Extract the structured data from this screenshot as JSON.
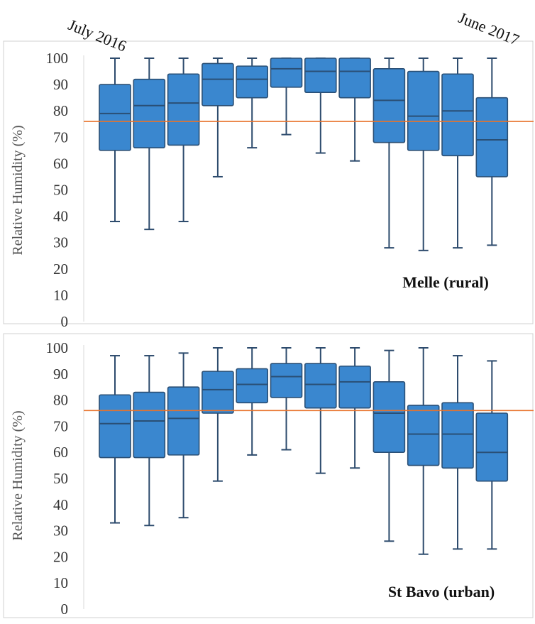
{
  "header": {
    "start_label": "July 2016",
    "end_label": "June 2017"
  },
  "colors": {
    "box_fill": "#3a87cf",
    "box_stroke": "#2a4f75",
    "whisker": "#2d4b6d",
    "reference_line": "#e8732c",
    "axis_text": "#333333",
    "panel_border": "#d0d0d0"
  },
  "chart_data": [
    {
      "type": "box",
      "panel_label": "Melle (rural)",
      "ylabel": "Relative Humidity (%)",
      "ylim": [
        0,
        100
      ],
      "yticks": [
        0,
        10,
        20,
        30,
        40,
        50,
        60,
        70,
        80,
        90,
        100
      ],
      "reference_line": 76,
      "boxes": [
        {
          "min": 38,
          "q1": 65,
          "median": 79,
          "q3": 90,
          "max": 100
        },
        {
          "min": 35,
          "q1": 66,
          "median": 82,
          "q3": 92,
          "max": 100
        },
        {
          "min": 38,
          "q1": 67,
          "median": 83,
          "q3": 94,
          "max": 100
        },
        {
          "min": 55,
          "q1": 82,
          "median": 92,
          "q3": 98,
          "max": 100
        },
        {
          "min": 66,
          "q1": 85,
          "median": 92,
          "q3": 97,
          "max": 100
        },
        {
          "min": 71,
          "q1": 89,
          "median": 96,
          "q3": 100,
          "max": 100
        },
        {
          "min": 64,
          "q1": 87,
          "median": 95,
          "q3": 100,
          "max": 100
        },
        {
          "min": 61,
          "q1": 85,
          "median": 95,
          "q3": 100,
          "max": 100
        },
        {
          "min": 28,
          "q1": 68,
          "median": 84,
          "q3": 96,
          "max": 100
        },
        {
          "min": 27,
          "q1": 65,
          "median": 78,
          "q3": 95,
          "max": 100
        },
        {
          "min": 28,
          "q1": 63,
          "median": 80,
          "q3": 94,
          "max": 100
        },
        {
          "min": 29,
          "q1": 55,
          "median": 69,
          "q3": 85,
          "max": 100
        }
      ]
    },
    {
      "type": "box",
      "panel_label": "St Bavo (urban)",
      "ylabel": "Relative Humidity (%)",
      "ylim": [
        0,
        100
      ],
      "yticks": [
        0,
        10,
        20,
        30,
        40,
        50,
        60,
        70,
        80,
        90,
        100
      ],
      "reference_line": 76,
      "boxes": [
        {
          "min": 33,
          "q1": 58,
          "median": 71,
          "q3": 82,
          "max": 97
        },
        {
          "min": 32,
          "q1": 58,
          "median": 72,
          "q3": 83,
          "max": 97
        },
        {
          "min": 35,
          "q1": 59,
          "median": 73,
          "q3": 85,
          "max": 98
        },
        {
          "min": 49,
          "q1": 75,
          "median": 84,
          "q3": 91,
          "max": 100
        },
        {
          "min": 59,
          "q1": 79,
          "median": 86,
          "q3": 92,
          "max": 100
        },
        {
          "min": 61,
          "q1": 81,
          "median": 89,
          "q3": 94,
          "max": 100
        },
        {
          "min": 52,
          "q1": 77,
          "median": 86,
          "q3": 94,
          "max": 100
        },
        {
          "min": 54,
          "q1": 77,
          "median": 87,
          "q3": 93,
          "max": 100
        },
        {
          "min": 26,
          "q1": 60,
          "median": 75,
          "q3": 87,
          "max": 99
        },
        {
          "min": 21,
          "q1": 55,
          "median": 67,
          "q3": 78,
          "max": 100
        },
        {
          "min": 23,
          "q1": 54,
          "median": 67,
          "q3": 79,
          "max": 97
        },
        {
          "min": 23,
          "q1": 49,
          "median": 60,
          "q3": 75,
          "max": 95
        }
      ]
    }
  ]
}
